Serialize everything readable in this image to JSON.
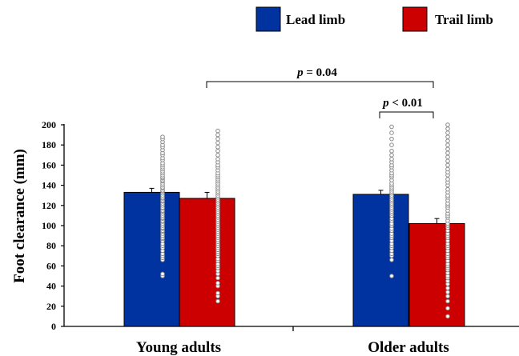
{
  "chart_data": {
    "type": "bar",
    "ylabel": "Foot clearance (mm)",
    "ylim": [
      0,
      200
    ],
    "yticks": [
      0,
      20,
      40,
      60,
      80,
      100,
      120,
      140,
      160,
      180,
      200
    ],
    "categories": [
      "Young adults",
      "Older adults"
    ],
    "legend_position": "top-right",
    "series": [
      {
        "name": "Lead limb",
        "color": "#0033a0",
        "values": [
          133,
          131
        ],
        "error": [
          4,
          4
        ]
      },
      {
        "name": "Trail limb",
        "color": "#cc0000",
        "values": [
          127,
          102
        ],
        "error": [
          6,
          5
        ]
      }
    ],
    "individual_points": {
      "young_lead": [
        50,
        52,
        66,
        68,
        70,
        72,
        75,
        78,
        80,
        82,
        85,
        87,
        88,
        90,
        92,
        94,
        95,
        97,
        98,
        100,
        102,
        104,
        105,
        107,
        108,
        110,
        112,
        114,
        115,
        117,
        118,
        120,
        122,
        124,
        125,
        127,
        128,
        130,
        132,
        134,
        135,
        137,
        138,
        140,
        142,
        144,
        145,
        147,
        148,
        150,
        152,
        154,
        156,
        158,
        160,
        162,
        165,
        167,
        170,
        172,
        175,
        178,
        180,
        183,
        186,
        188
      ],
      "young_trail": [
        25,
        30,
        33,
        40,
        43,
        48,
        52,
        55,
        58,
        60,
        62,
        65,
        67,
        70,
        72,
        74,
        76,
        78,
        80,
        82,
        84,
        86,
        88,
        90,
        92,
        94,
        96,
        98,
        100,
        102,
        104,
        106,
        108,
        110,
        112,
        114,
        116,
        118,
        120,
        122,
        124,
        126,
        128,
        130,
        132,
        134,
        136,
        138,
        140,
        142,
        144,
        146,
        148,
        150,
        152,
        155,
        158,
        160,
        163,
        166,
        170,
        174,
        178,
        182,
        186,
        190,
        194
      ],
      "older_lead": [
        50,
        66,
        70,
        72,
        75,
        78,
        80,
        82,
        85,
        88,
        90,
        92,
        95,
        97,
        100,
        102,
        105,
        107,
        110,
        112,
        114,
        116,
        118,
        120,
        122,
        124,
        126,
        128,
        130,
        132,
        134,
        136,
        138,
        140,
        142,
        145,
        148,
        150,
        152,
        155,
        158,
        160,
        163,
        166,
        170,
        174,
        180,
        186,
        192,
        198
      ],
      "older_trail": [
        10,
        18,
        25,
        30,
        34,
        38,
        42,
        45,
        48,
        50,
        53,
        56,
        58,
        60,
        62,
        65,
        68,
        70,
        72,
        75,
        78,
        80,
        82,
        85,
        88,
        90,
        92,
        95,
        98,
        100,
        102,
        105,
        108,
        110,
        112,
        115,
        118,
        120,
        122,
        125,
        128,
        130,
        133,
        136,
        140,
        143,
        146,
        150,
        153,
        156,
        160,
        164,
        168,
        172,
        176,
        180,
        184,
        188,
        192,
        196,
        200
      ]
    },
    "annotations": [
      {
        "label_italic": "p",
        "label_rest": " = 0.04"
      },
      {
        "label_italic": "p",
        "label_rest": " < 0.01"
      }
    ]
  }
}
